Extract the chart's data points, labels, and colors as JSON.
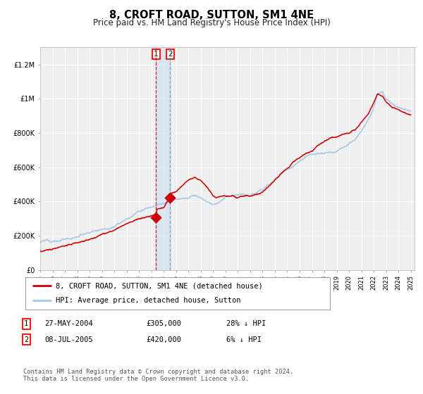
{
  "title": "8, CROFT ROAD, SUTTON, SM1 4NE",
  "subtitle": "Price paid vs. HM Land Registry's House Price Index (HPI)",
  "background_color": "#ffffff",
  "plot_bg_color": "#efefef",
  "grid_color": "#ffffff",
  "hpi_color": "#a8c8e8",
  "price_color": "#cc0000",
  "ylim": [
    0,
    1300000
  ],
  "yticks": [
    0,
    200000,
    400000,
    600000,
    800000,
    1000000,
    1200000
  ],
  "ytick_labels": [
    "£0",
    "£200K",
    "£400K",
    "£600K",
    "£800K",
    "£1M",
    "£1.2M"
  ],
  "xstart_year": 1995,
  "xend_year": 2025,
  "sale1_date": 2004.38,
  "sale1_price": 305000,
  "sale2_date": 2005.52,
  "sale2_price": 420000,
  "legend_label_red": "8, CROFT ROAD, SUTTON, SM1 4NE (detached house)",
  "legend_label_blue": "HPI: Average price, detached house, Sutton",
  "table_row1": [
    "1",
    "27-MAY-2004",
    "£305,000",
    "28% ↓ HPI"
  ],
  "table_row2": [
    "2",
    "08-JUL-2005",
    "£420,000",
    "6% ↓ HPI"
  ],
  "footnote": "Contains HM Land Registry data © Crown copyright and database right 2024.\nThis data is licensed under the Open Government Licence v3.0.",
  "title_fontsize": 10.5,
  "subtitle_fontsize": 8.5,
  "tick_fontsize": 7,
  "legend_fontsize": 7.5
}
